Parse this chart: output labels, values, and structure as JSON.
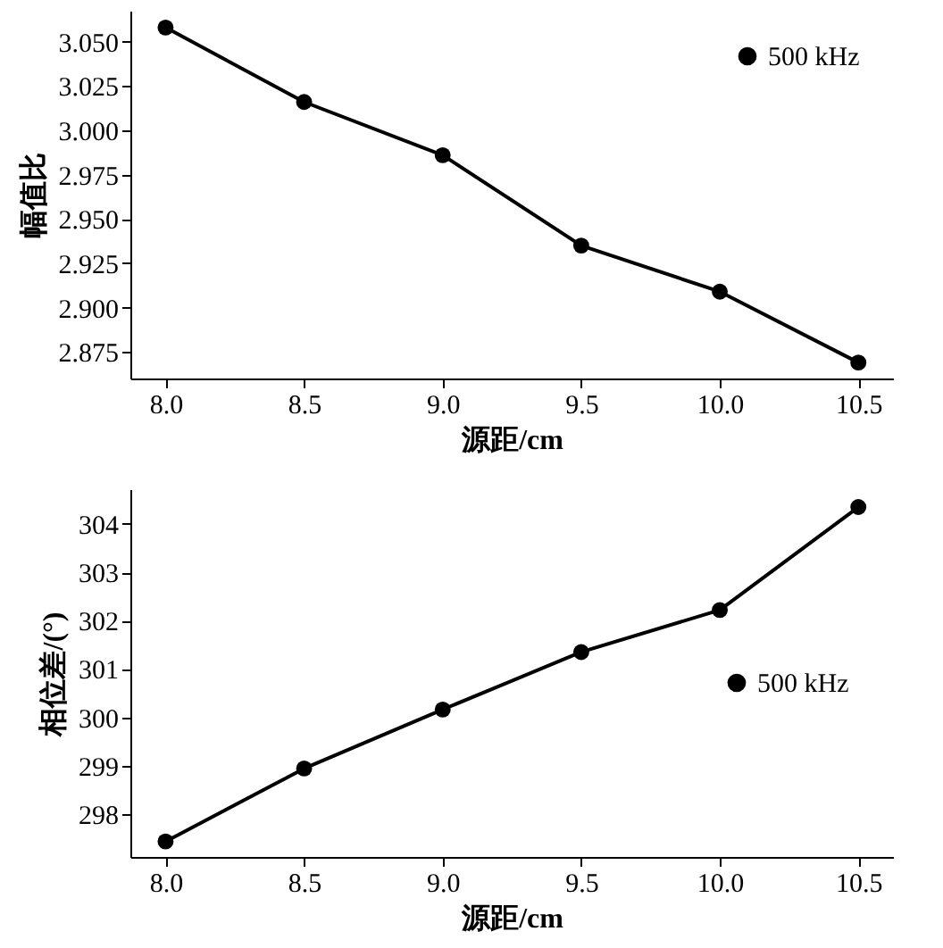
{
  "chart_data": [
    {
      "type": "line",
      "xlabel": "源距/cm",
      "ylabel": "幅值比",
      "x": [
        8.0,
        8.5,
        9.0,
        9.5,
        10.0,
        10.5
      ],
      "series": [
        {
          "name": "500 kHz",
          "color": "#000000",
          "values": [
            3.058,
            3.016,
            2.986,
            2.935,
            2.909,
            2.869
          ]
        }
      ],
      "xlim": [
        7.873,
        10.625
      ],
      "ylim": [
        2.86,
        3.0675
      ],
      "xticks": [
        {
          "value": 8,
          "label": "8.0"
        },
        {
          "value": 8.5,
          "label": "8.5"
        },
        {
          "value": 9,
          "label": "9.0"
        },
        {
          "value": 9.5,
          "label": "9.5"
        },
        {
          "value": 10,
          "label": "10.0"
        },
        {
          "value": 10.5,
          "label": "10.5"
        }
      ],
      "yticks": [
        {
          "value": 2.875,
          "label": "2.875"
        },
        {
          "value": 2.9,
          "label": "2.900"
        },
        {
          "value": 2.925,
          "label": "2.925"
        },
        {
          "value": 2.95,
          "label": "2.950"
        },
        {
          "value": 2.975,
          "label": "2.975"
        },
        {
          "value": 3,
          "label": "3.000"
        },
        {
          "value": 3.025,
          "label": "3.025"
        },
        {
          "value": 3.05,
          "label": "3.050"
        }
      ],
      "marker": "circle",
      "legend": "top right",
      "grid": false
    },
    {
      "type": "line",
      "xlabel": "源距/cm",
      "ylabel": "相位差/(°)",
      "x": [
        8.0,
        8.5,
        9.0,
        9.5,
        10.0,
        10.5
      ],
      "series": [
        {
          "name": "500 kHz",
          "color": "#000000",
          "values": [
            297.43,
            298.94,
            300.16,
            301.35,
            302.22,
            304.35
          ]
        }
      ],
      "xlim": [
        7.873,
        10.625
      ],
      "ylim": [
        297.11,
        304.72
      ],
      "xticks": [
        {
          "value": 8,
          "label": "8.0"
        },
        {
          "value": 8.5,
          "label": "8.5"
        },
        {
          "value": 9,
          "label": "9.0"
        },
        {
          "value": 9.5,
          "label": "9.5"
        },
        {
          "value": 10,
          "label": "10.0"
        },
        {
          "value": 10.5,
          "label": "10.5"
        }
      ],
      "yticks": [
        298,
        299,
        300,
        301,
        302,
        303,
        304
      ],
      "marker": "circle",
      "legend": "right",
      "grid": false
    }
  ]
}
